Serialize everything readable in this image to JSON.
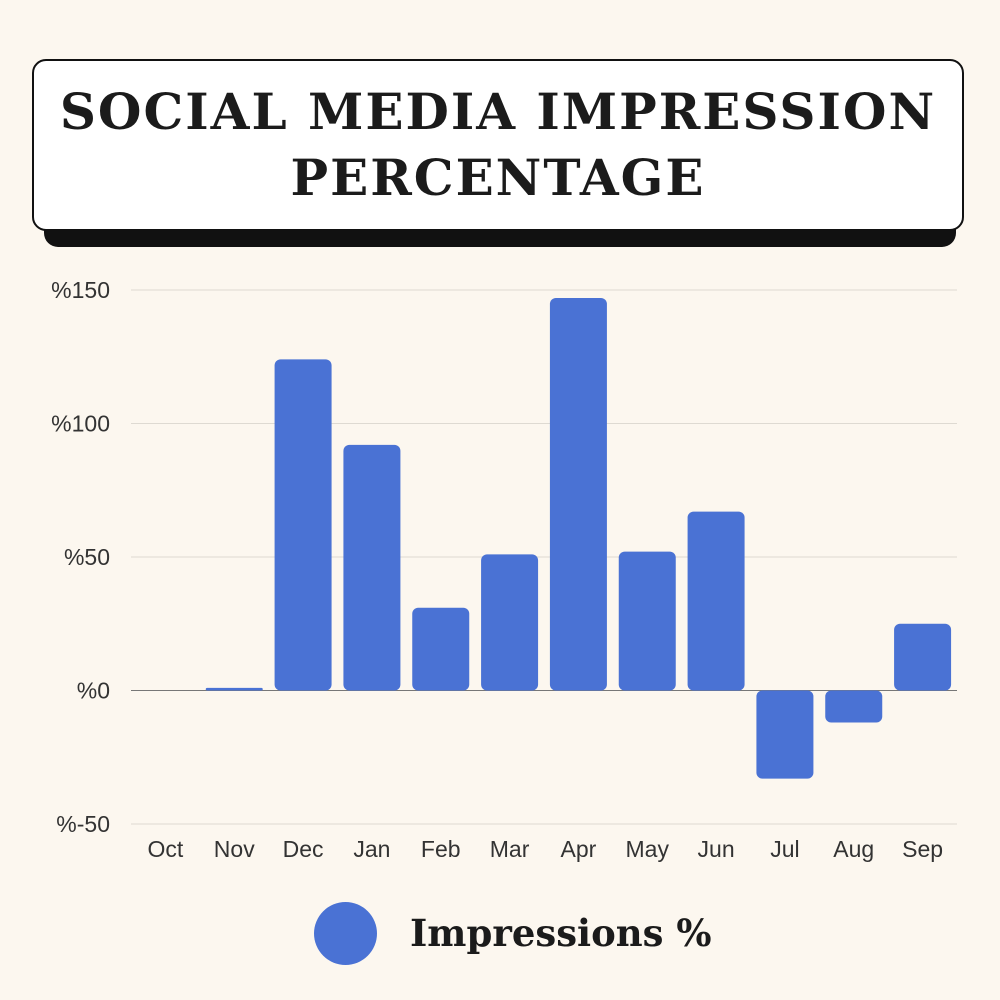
{
  "title": {
    "line1": "SOCIAL MEDIA IMPRESSION",
    "line2": "PERCENTAGE"
  },
  "legend": {
    "label": "Impressions %"
  },
  "colors": {
    "background": "#fcf7ef",
    "bar": "#4a72d4",
    "grid": "#dedad2",
    "text": "#333333"
  },
  "chart_data": {
    "type": "bar",
    "categories": [
      "Oct",
      "Nov",
      "Dec",
      "Jan",
      "Feb",
      "Mar",
      "Apr",
      "May",
      "Jun",
      "Jul",
      "Aug",
      "Sep"
    ],
    "series": [
      {
        "name": "Impressions %",
        "values": [
          0,
          1,
          124,
          92,
          31,
          51,
          147,
          52,
          67,
          -33,
          -12,
          25
        ]
      }
    ],
    "ylim": [
      -50,
      150
    ],
    "yticks": [
      150,
      100,
      50,
      0,
      -50
    ],
    "ytick_labels": [
      "%150",
      "%100",
      "%50",
      "%0",
      "%-50"
    ],
    "grid": true,
    "legend_position": "bottom"
  }
}
